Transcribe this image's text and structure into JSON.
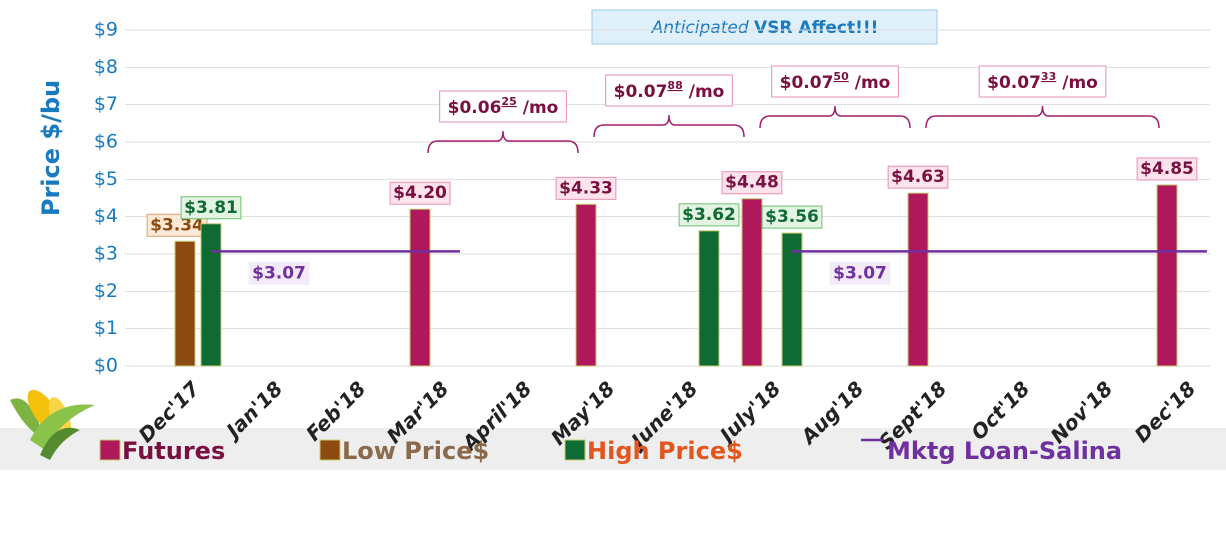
{
  "chart_data": {
    "type": "bar",
    "y_label": "Price $/bu",
    "annotation": {
      "italic": "Anticipated",
      "bold": "VSR Affect!!!"
    },
    "categories": [
      "Dec'17",
      "Jan'18",
      "Feb'18",
      "Mar'18",
      "April'18",
      "May'18",
      "June'18",
      "July'18",
      "Aug'18",
      "Sept'18",
      "Oct'18",
      "Nov'18",
      "Dec'18"
    ],
    "ylim": [
      0,
      9
    ],
    "yticks": [
      {
        "value": 0,
        "label": "$0"
      },
      {
        "value": 1,
        "label": "$1"
      },
      {
        "value": 2,
        "label": "$2"
      },
      {
        "value": 3,
        "label": "$3"
      },
      {
        "value": 4,
        "label": "$4"
      },
      {
        "value": 5,
        "label": "$5"
      },
      {
        "value": 6,
        "label": "$6"
      },
      {
        "value": 7,
        "label": "$7"
      },
      {
        "value": 8,
        "label": "$8"
      },
      {
        "value": 9,
        "label": "$9"
      }
    ],
    "grid": true,
    "series": [
      {
        "name": "Futures",
        "color": "#b0185c",
        "values": [
          null,
          null,
          null,
          4.2,
          null,
          4.33,
          null,
          4.48,
          null,
          4.63,
          null,
          null,
          4.85
        ],
        "value_labels": [
          null,
          null,
          null,
          "$4.20",
          null,
          "$4.33",
          null,
          "$4.48",
          null,
          "$4.63",
          null,
          null,
          "$4.85"
        ]
      },
      {
        "name": "Low Price$",
        "color": "#8b4a12",
        "values": [
          3.34,
          null,
          null,
          null,
          null,
          null,
          null,
          null,
          null,
          null,
          null,
          null,
          null
        ],
        "value_labels": [
          "$3.34",
          null,
          null,
          null,
          null,
          null,
          null,
          null,
          null,
          null,
          null,
          null,
          null
        ]
      },
      {
        "name": "High Price$",
        "color": "#0f6b33",
        "values": [
          3.81,
          null,
          null,
          null,
          null,
          null,
          3.62,
          3.56,
          null,
          null,
          null,
          null,
          null
        ],
        "value_labels": [
          "$3.81",
          null,
          null,
          null,
          null,
          null,
          "$3.62",
          "$3.56",
          null,
          null,
          null,
          null,
          null
        ]
      },
      {
        "name": "Mktg Loan-Salina",
        "type": "line",
        "color": "#7030a0",
        "values": [
          3.07,
          3.07,
          3.07,
          3.07,
          null,
          null,
          null,
          3.07,
          3.07,
          3.07,
          3.07,
          3.07,
          3.07
        ],
        "value_labels": [
          null,
          "$3.07",
          null,
          null,
          null,
          null,
          null,
          null,
          "$3.07",
          null,
          null,
          null,
          null
        ]
      }
    ],
    "braces": [
      {
        "main": "$0.06",
        "sup": "25",
        "unit": "/mo"
      },
      {
        "main": "$0.07",
        "sup": "88",
        "unit": "/mo"
      },
      {
        "main": "$0.07",
        "sup": "50",
        "unit": "/mo"
      },
      {
        "main": "$0.07",
        "sup": "33",
        "unit": "/mo"
      }
    ]
  }
}
